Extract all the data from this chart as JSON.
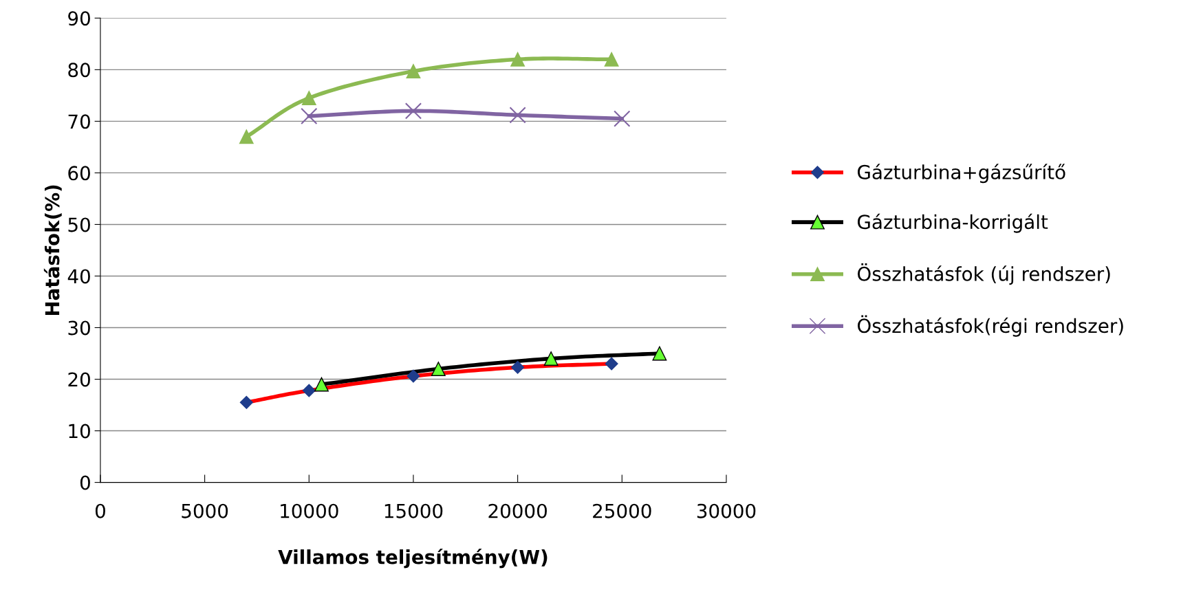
{
  "chart_data": {
    "type": "line",
    "xlabel": "Villamos teljesítmény(W)",
    "ylabel": "Hatásfok(%)",
    "xlim": [
      0,
      30000
    ],
    "xticks": [
      0,
      5000,
      10000,
      15000,
      20000,
      25000,
      30000
    ],
    "ylim": [
      0,
      90
    ],
    "yticks": [
      0,
      10,
      20,
      30,
      40,
      50,
      60,
      70,
      80,
      90
    ],
    "grid": "y",
    "legend": "right",
    "series": [
      {
        "name": "Gázturbina+gázsűrítő",
        "color": "#ff0000",
        "colors": [
          "#1f3d8c",
          "#1f3d8c",
          "#1f3d8c",
          "#1f3d8c",
          "#1f3d8c"
        ],
        "marker": "diamond",
        "x": [
          7000,
          10000,
          15000,
          20000,
          24500
        ],
        "values": [
          15.5,
          17.8,
          20.6,
          22.3,
          23
        ]
      },
      {
        "name": "Gázturbina-korrigált",
        "color": "#000000",
        "colors": [
          "#66ff33",
          "#66ff33",
          "#66ff33",
          "#66ff33"
        ],
        "marker": "triangle",
        "x": [
          10600,
          16200,
          21600,
          26800
        ],
        "values": [
          19,
          22,
          24,
          25
        ]
      },
      {
        "name": "Összhatásfok (új rendszer)",
        "color": "#8cba52",
        "marker": "triangle",
        "x": [
          7000,
          10000,
          15000,
          20000,
          24500
        ],
        "values": [
          67,
          74.5,
          79.7,
          82,
          82
        ]
      },
      {
        "name": "Összhatásfok(régi rendszer)",
        "color": "#8064a2",
        "marker": "cross",
        "x": [
          10000,
          15000,
          20000,
          25000
        ],
        "values": [
          71,
          72,
          71.2,
          70.5
        ]
      }
    ]
  }
}
